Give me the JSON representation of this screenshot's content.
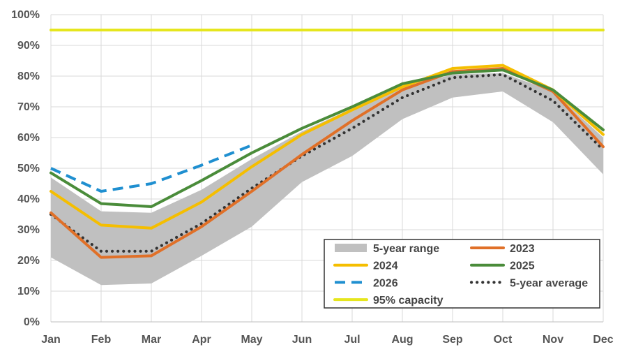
{
  "chart_data": {
    "type": "line",
    "title": "",
    "xlabel": "",
    "ylabel": "",
    "ylim": [
      0,
      100
    ],
    "y_ticks": [
      0,
      10,
      20,
      30,
      40,
      50,
      60,
      70,
      80,
      90,
      100
    ],
    "y_tick_suffix": "%",
    "grid": true,
    "legend_position": "bottom-right",
    "categories": [
      "Jan",
      "Feb",
      "Mar",
      "Apr",
      "May",
      "Jun",
      "Jul",
      "Aug",
      "Sep",
      "Oct",
      "Nov",
      "Dec"
    ],
    "band": {
      "name": "5-year range",
      "color": "#c0c0c0",
      "low": [
        21,
        12,
        12.5,
        21.5,
        31,
        45.5,
        54,
        66,
        73,
        75,
        65,
        48
      ],
      "high": [
        47,
        36,
        35.5,
        43,
        53,
        62,
        69.5,
        76.5,
        80.5,
        81,
        75,
        60
      ]
    },
    "series": [
      {
        "name": "2023",
        "color": "#e07028",
        "dash": "solid",
        "values": [
          35.5,
          21,
          21.5,
          31,
          42.5,
          54.5,
          65.5,
          75.5,
          81.5,
          82.5,
          75,
          57
        ]
      },
      {
        "name": "2024",
        "color": "#f5be00",
        "dash": "solid",
        "values": [
          42.5,
          31.5,
          30.5,
          39,
          50.5,
          61,
          69,
          76.5,
          82.5,
          83.5,
          75.5,
          61
        ]
      },
      {
        "name": "2025",
        "color": "#4a8c3a",
        "dash": "solid",
        "values": [
          48.5,
          38.5,
          37.5,
          46,
          55,
          63,
          70,
          77.5,
          81,
          82,
          75.5,
          62.5
        ]
      },
      {
        "name": "2026",
        "color": "#1f8fd0",
        "dash": "dashed",
        "values": [
          50,
          42.5,
          45,
          51,
          57.5,
          null,
          null,
          null,
          null,
          null,
          null,
          null
        ]
      },
      {
        "name": "5-year average",
        "color": "#333333",
        "dash": "dotted",
        "values": [
          35,
          23,
          23,
          32,
          43.5,
          54,
          63,
          73,
          79.5,
          80.5,
          72,
          56
        ]
      },
      {
        "name": "95% capacity",
        "color": "#e6e61e",
        "dash": "solid",
        "values": [
          95,
          95,
          95,
          95,
          95,
          95,
          95,
          95,
          95,
          95,
          95,
          95
        ]
      }
    ],
    "legend": [
      {
        "label": "5-year range",
        "ref": "band"
      },
      {
        "label": "2023",
        "ref": "2023"
      },
      {
        "label": "2024",
        "ref": "2024"
      },
      {
        "label": "2025",
        "ref": "2025"
      },
      {
        "label": "2026",
        "ref": "2026"
      },
      {
        "label": "5-year average",
        "ref": "5-year average"
      },
      {
        "label": "95% capacity",
        "ref": "95% capacity"
      }
    ]
  }
}
